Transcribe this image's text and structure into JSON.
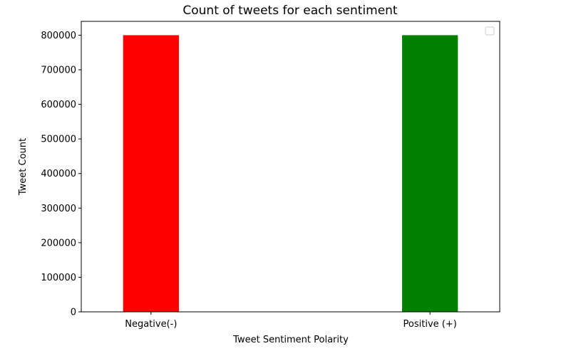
{
  "chart_data": {
    "type": "bar",
    "title": "Count of tweets for each sentiment",
    "xlabel": "Tweet Sentiment Polarity",
    "ylabel": "Tweet Count",
    "categories": [
      "Negative(-)",
      "Positive (+)"
    ],
    "values": [
      800000,
      800000
    ],
    "bar_colors": [
      "#ff0000",
      "#008000"
    ],
    "ylim": [
      0,
      840000
    ],
    "yticks": [
      0,
      100000,
      200000,
      300000,
      400000,
      500000,
      600000,
      700000,
      800000
    ],
    "grid": false,
    "legend": {
      "placement": "top-right",
      "entries": []
    }
  }
}
